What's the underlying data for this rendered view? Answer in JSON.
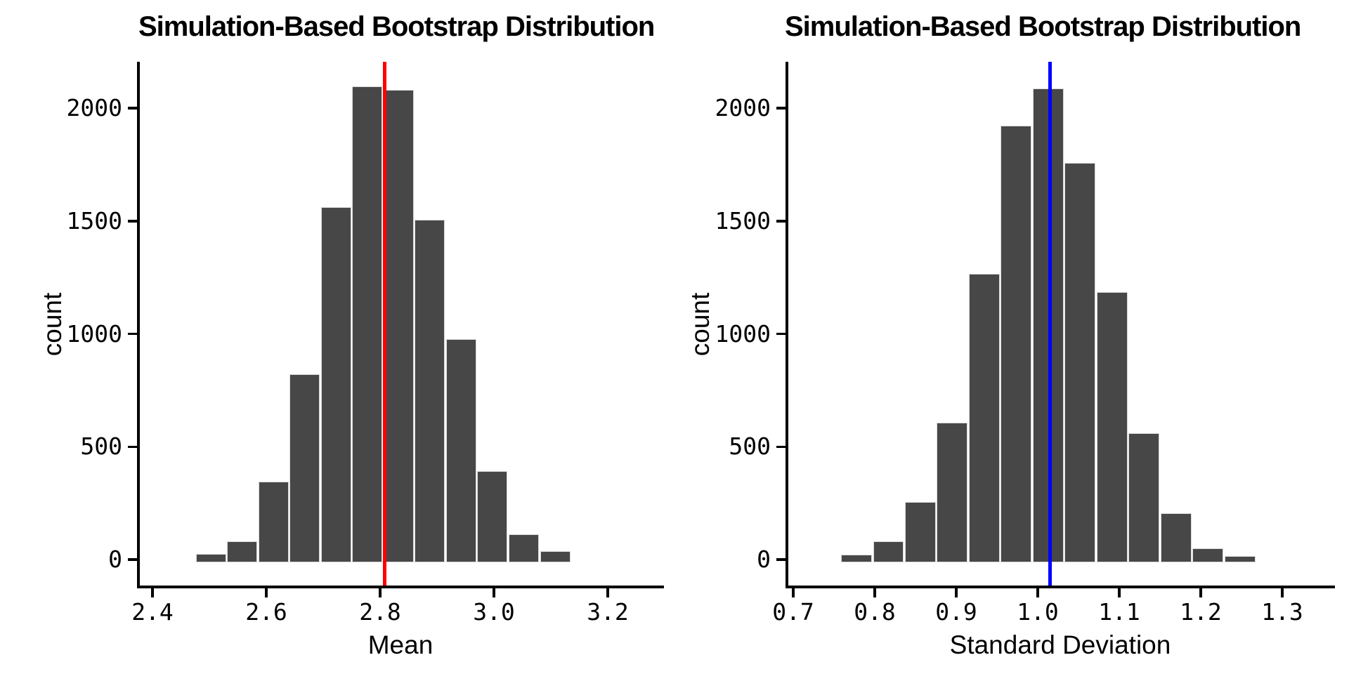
{
  "page": {
    "background": "#ffffff"
  },
  "chart_data": [
    {
      "type": "bar",
      "subtype": "histogram",
      "title": "Simulation-Based Bootstrap Distribution",
      "xlabel": "Mean",
      "ylabel": "count",
      "bar_fill": "#474747",
      "bar_border": "#d9d9d9",
      "grid": false,
      "legend": "none",
      "bin_start": 2.475,
      "bin_width": 0.055,
      "counts": [
        20,
        75,
        340,
        815,
        1555,
        2090,
        2075,
        1500,
        970,
        385,
        105,
        30
      ],
      "x_ticks": [
        {
          "value": 2.4,
          "label": "2.4"
        },
        {
          "value": 2.6,
          "label": "2.6"
        },
        {
          "value": 2.8,
          "label": "2.8"
        },
        {
          "value": 3.0,
          "label": "3.0"
        },
        {
          "value": 3.2,
          "label": "3.2"
        }
      ],
      "y_ticks": [
        {
          "value": 0,
          "label": "0"
        },
        {
          "value": 500,
          "label": "500"
        },
        {
          "value": 1000,
          "label": "1000"
        },
        {
          "value": 1500,
          "label": "1500"
        },
        {
          "value": 2000,
          "label": "2000"
        }
      ],
      "xlim": [
        2.37,
        3.3
      ],
      "ylim": [
        0,
        2200
      ],
      "vline": {
        "value": 2.808,
        "color": "#ff0000",
        "name": "observed-mean-line"
      }
    },
    {
      "type": "bar",
      "subtype": "histogram",
      "title": "Simulation-Based Bootstrap Distribution",
      "xlabel": "Standard Deviation",
      "ylabel": "count",
      "bar_fill": "#474747",
      "bar_border": "#d9d9d9",
      "grid": false,
      "legend": "none",
      "bin_start": 0.758,
      "bin_width": 0.0392,
      "counts": [
        15,
        75,
        250,
        600,
        1260,
        1915,
        2080,
        1750,
        1180,
        555,
        200,
        45,
        10
      ],
      "x_ticks": [
        {
          "value": 0.7,
          "label": "0.7"
        },
        {
          "value": 0.8,
          "label": "0.8"
        },
        {
          "value": 0.9,
          "label": "0.9"
        },
        {
          "value": 1.0,
          "label": "1.0"
        },
        {
          "value": 1.1,
          "label": "1.1"
        },
        {
          "value": 1.2,
          "label": "1.2"
        },
        {
          "value": 1.3,
          "label": "1.3"
        }
      ],
      "y_ticks": [
        {
          "value": 0,
          "label": "0"
        },
        {
          "value": 500,
          "label": "500"
        },
        {
          "value": 1000,
          "label": "1000"
        },
        {
          "value": 1500,
          "label": "1500"
        },
        {
          "value": 2000,
          "label": "2000"
        }
      ],
      "xlim": [
        0.69,
        1.36
      ],
      "ylim": [
        0,
        2200
      ],
      "vline": {
        "value": 1.015,
        "color": "#0000ff",
        "name": "observed-sd-line"
      }
    }
  ]
}
